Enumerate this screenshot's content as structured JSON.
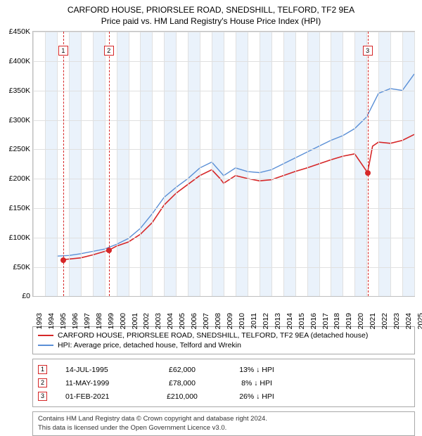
{
  "title": {
    "line1": "CARFORD HOUSE, PRIORSLEE ROAD, SNEDSHILL, TELFORD, TF2 9EA",
    "line2": "Price paid vs. HM Land Registry's House Price Index (HPI)"
  },
  "chart": {
    "type": "line",
    "background_color": "#ffffff",
    "grid_color": "#e0e0e0",
    "shade_color": "#eaf2fb",
    "y": {
      "min": 0,
      "max": 450000,
      "ticks": [
        0,
        50000,
        100000,
        150000,
        200000,
        250000,
        300000,
        350000,
        400000,
        450000
      ],
      "tick_labels": [
        "£0",
        "£50K",
        "£100K",
        "£150K",
        "£200K",
        "£250K",
        "£300K",
        "£350K",
        "£400K",
        "£450K"
      ]
    },
    "x": {
      "min": 1993,
      "max": 2025,
      "ticks": [
        1993,
        1994,
        1995,
        1996,
        1997,
        1998,
        1999,
        2000,
        2001,
        2002,
        2003,
        2004,
        2005,
        2006,
        2007,
        2008,
        2009,
        2010,
        2011,
        2012,
        2013,
        2014,
        2015,
        2016,
        2017,
        2018,
        2019,
        2020,
        2021,
        2022,
        2023,
        2024,
        2025
      ]
    },
    "series": [
      {
        "id": "price_paid",
        "label": "CARFORD HOUSE, PRIORSLEE ROAD, SNEDSHILL, TELFORD, TF2 9EA (detached house)",
        "color": "#d62728",
        "width": 1.6,
        "points": [
          [
            1995.53,
            62000
          ],
          [
            1996,
            63000
          ],
          [
            1997,
            65000
          ],
          [
            1998,
            70000
          ],
          [
            1999.36,
            78000
          ],
          [
            2000,
            85000
          ],
          [
            2001,
            92000
          ],
          [
            2002,
            105000
          ],
          [
            2003,
            125000
          ],
          [
            2004,
            155000
          ],
          [
            2005,
            175000
          ],
          [
            2006,
            190000
          ],
          [
            2007,
            205000
          ],
          [
            2008,
            215000
          ],
          [
            2008.7,
            200000
          ],
          [
            2009,
            192000
          ],
          [
            2010,
            205000
          ],
          [
            2011,
            200000
          ],
          [
            2012,
            196000
          ],
          [
            2013,
            198000
          ],
          [
            2014,
            205000
          ],
          [
            2015,
            212000
          ],
          [
            2016,
            218000
          ],
          [
            2017,
            225000
          ],
          [
            2018,
            232000
          ],
          [
            2019,
            238000
          ],
          [
            2020,
            242000
          ],
          [
            2021.08,
            210000
          ],
          [
            2021.5,
            255000
          ],
          [
            2022,
            262000
          ],
          [
            2023,
            260000
          ],
          [
            2024,
            265000
          ],
          [
            2025,
            275000
          ]
        ]
      },
      {
        "id": "hpi",
        "label": "HPI: Average price, detached house, Telford and Wrekin",
        "color": "#5a8fd6",
        "width": 1.4,
        "points": [
          [
            1995,
            68000
          ],
          [
            1996,
            69000
          ],
          [
            1997,
            72000
          ],
          [
            1998,
            76000
          ],
          [
            1999,
            80000
          ],
          [
            2000,
            88000
          ],
          [
            2001,
            98000
          ],
          [
            2002,
            115000
          ],
          [
            2003,
            140000
          ],
          [
            2004,
            168000
          ],
          [
            2005,
            185000
          ],
          [
            2006,
            200000
          ],
          [
            2007,
            218000
          ],
          [
            2008,
            228000
          ],
          [
            2009,
            205000
          ],
          [
            2010,
            218000
          ],
          [
            2011,
            212000
          ],
          [
            2012,
            210000
          ],
          [
            2013,
            215000
          ],
          [
            2014,
            225000
          ],
          [
            2015,
            235000
          ],
          [
            2016,
            245000
          ],
          [
            2017,
            255000
          ],
          [
            2018,
            265000
          ],
          [
            2019,
            273000
          ],
          [
            2020,
            285000
          ],
          [
            2021,
            305000
          ],
          [
            2022,
            345000
          ],
          [
            2023,
            353000
          ],
          [
            2024,
            350000
          ],
          [
            2025,
            378000
          ]
        ]
      }
    ],
    "markers": [
      {
        "n": "1",
        "x": 1995.53,
        "y": 62000,
        "date": "14-JUL-1995",
        "price": "£62,000",
        "pct": "13% ↓ HPI"
      },
      {
        "n": "2",
        "x": 1999.36,
        "y": 78000,
        "date": "11-MAY-1999",
        "price": "£78,000",
        "pct": "8% ↓ HPI"
      },
      {
        "n": "3",
        "x": 2021.08,
        "y": 210000,
        "date": "01-FEB-2021",
        "price": "£210,000",
        "pct": "26% ↓ HPI"
      }
    ],
    "marker_line_color": "#d62728"
  },
  "footer": {
    "line1": "Contains HM Land Registry data © Crown copyright and database right 2024.",
    "line2": "This data is licensed under the Open Government Licence v3.0."
  }
}
